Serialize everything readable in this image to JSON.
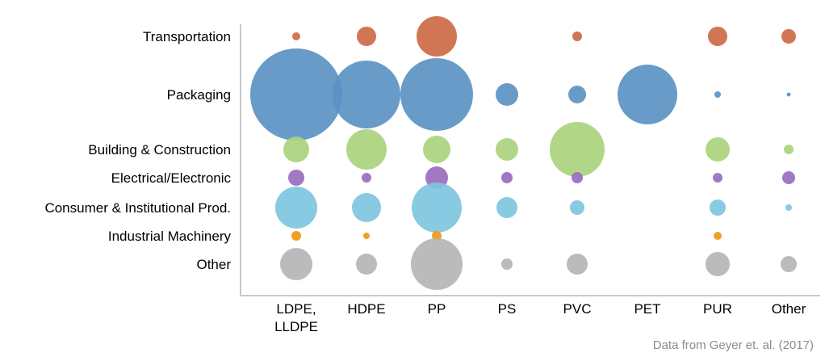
{
  "chart_data": {
    "type": "bubble",
    "title": "",
    "xlabel": "",
    "ylabel": "",
    "x_categories": [
      [
        "LDPE,",
        "LLDPE"
      ],
      [
        "HDPE"
      ],
      [
        "PP"
      ],
      [
        "PS"
      ],
      [
        "PVC"
      ],
      [
        "PET"
      ],
      [
        "PUR"
      ],
      [
        "Other"
      ]
    ],
    "y_categories": [
      "Transportation",
      "Packaging",
      "Building & Construction",
      "Electrical/Electronic",
      "Consumer & Institutional Prod.",
      "Industrial Machinery",
      "Other"
    ],
    "size_note": "relative bubble radius",
    "series": [
      {
        "name": "Transportation",
        "color": "#cd6a45",
        "values": [
          5,
          12,
          25,
          0,
          6,
          0,
          12,
          9
        ]
      },
      {
        "name": "Packaging",
        "color": "#5b93c3",
        "values": [
          57,
          42,
          45,
          14,
          11,
          37,
          4,
          2.5
        ]
      },
      {
        "name": "Building & Construction",
        "color": "#abd27d",
        "values": [
          16,
          25,
          17,
          14,
          34,
          0,
          15,
          6
        ]
      },
      {
        "name": "Electrical/Electronic",
        "color": "#9a6cbf",
        "values": [
          10,
          6,
          14,
          7,
          7,
          0,
          6,
          8
        ]
      },
      {
        "name": "Consumer & Institutional Prod.",
        "color": "#7ec6df",
        "values": [
          26,
          18,
          31,
          13,
          9,
          0,
          10,
          4
        ]
      },
      {
        "name": "Industrial Machinery",
        "color": "#ef980f",
        "values": [
          6,
          4,
          6,
          0,
          0,
          0,
          5,
          0
        ]
      },
      {
        "name": "Other",
        "color": "#b5b5b5",
        "values": [
          20,
          13,
          32,
          7,
          13,
          0,
          15,
          10
        ]
      }
    ],
    "legend": "none",
    "grid": false,
    "annotation": "Data from Geyer et. al. (2017)"
  }
}
